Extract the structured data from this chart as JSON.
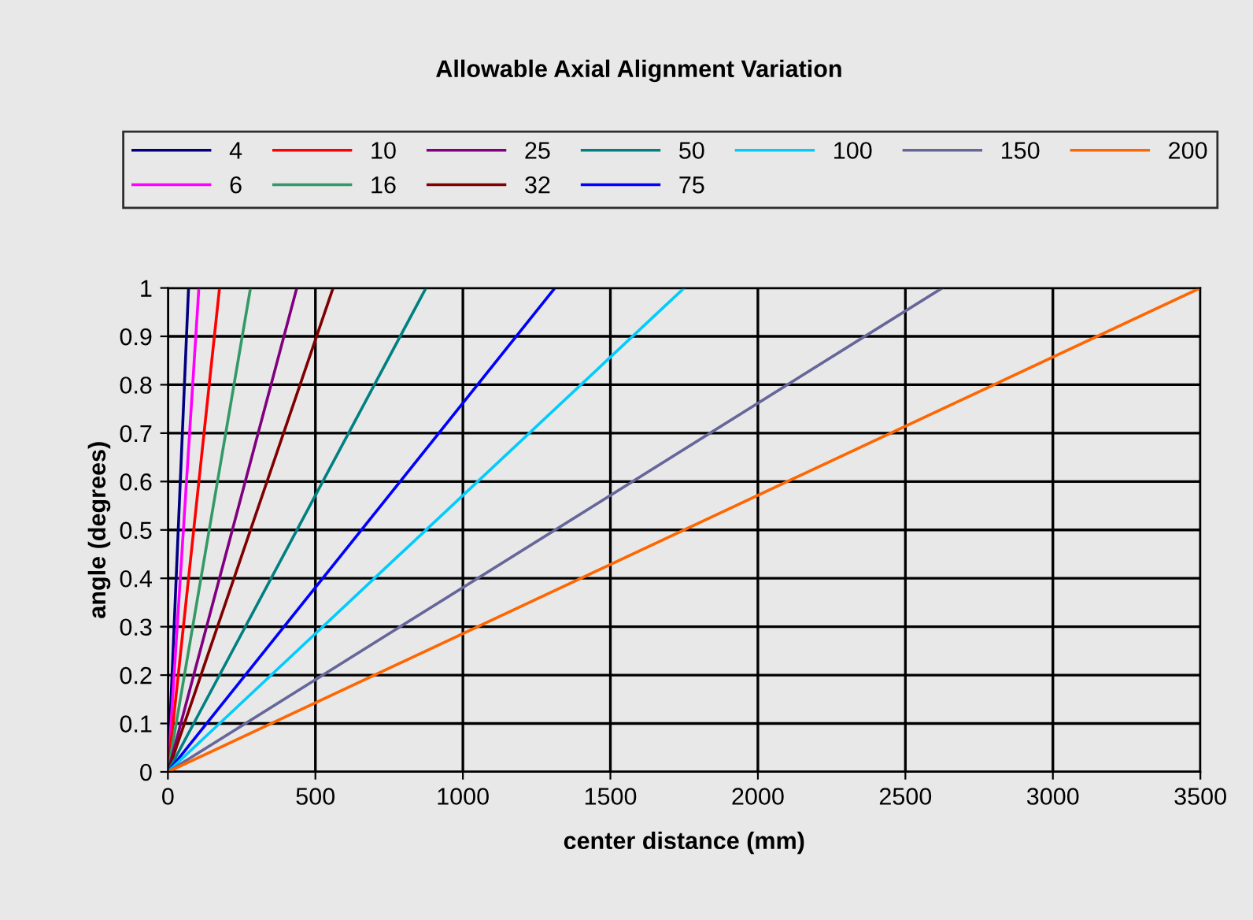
{
  "chart_data": {
    "type": "line",
    "title": "Allowable Axial Alignment Variation",
    "xlabel": "center distance (mm)",
    "ylabel": "angle (degrees)",
    "xlim": [
      0,
      3500
    ],
    "xticks": [
      0,
      500,
      1000,
      1500,
      2000,
      2500,
      3000,
      3500
    ],
    "ylim": [
      0,
      1
    ],
    "yticks": [
      0,
      0.1,
      0.2,
      0.3,
      0.4,
      0.5,
      0.6,
      0.7,
      0.8,
      0.9,
      1
    ],
    "grid": true,
    "legend": "top",
    "marker": "none",
    "line_style": "solid",
    "series": [
      {
        "name": "4",
        "color": "#000080",
        "x": [
          0,
          70
        ],
        "values": [
          0,
          1
        ]
      },
      {
        "name": "6",
        "color": "#ff00ff",
        "x": [
          0,
          105
        ],
        "values": [
          0,
          1
        ]
      },
      {
        "name": "10",
        "color": "#ff0000",
        "x": [
          0,
          175
        ],
        "values": [
          0,
          1
        ]
      },
      {
        "name": "16",
        "color": "#339966",
        "x": [
          0,
          280
        ],
        "values": [
          0,
          1
        ]
      },
      {
        "name": "25",
        "color": "#800080",
        "x": [
          0,
          437
        ],
        "values": [
          0,
          1
        ]
      },
      {
        "name": "32",
        "color": "#800000",
        "x": [
          0,
          560
        ],
        "values": [
          0,
          1
        ]
      },
      {
        "name": "50",
        "color": "#008080",
        "x": [
          0,
          875
        ],
        "values": [
          0,
          1
        ]
      },
      {
        "name": "75",
        "color": "#0000ff",
        "x": [
          0,
          1312
        ],
        "values": [
          0,
          1
        ]
      },
      {
        "name": "100",
        "color": "#00ccff",
        "x": [
          0,
          1750
        ],
        "values": [
          0,
          1
        ]
      },
      {
        "name": "150",
        "color": "#666699",
        "x": [
          0,
          2625
        ],
        "values": [
          0,
          1
        ]
      },
      {
        "name": "200",
        "color": "#ff6600",
        "x": [
          0,
          3500
        ],
        "values": [
          0,
          1
        ]
      }
    ]
  }
}
